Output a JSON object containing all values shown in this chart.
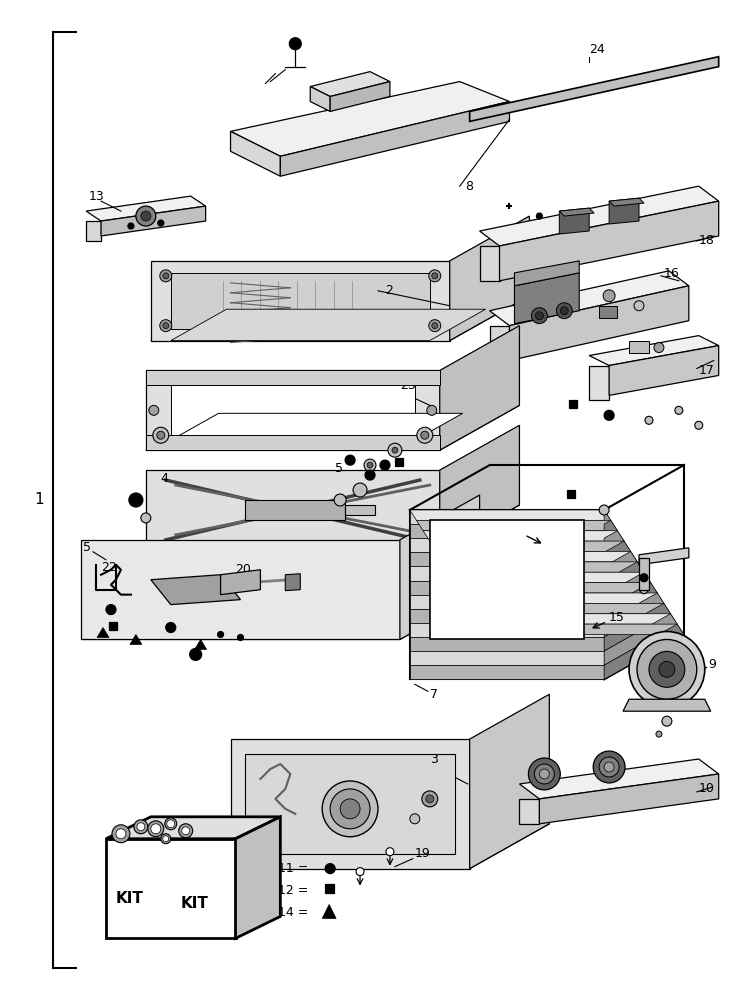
{
  "bg_color": "#ffffff",
  "line_color": "#000000",
  "fig_width": 7.44,
  "fig_height": 10.0,
  "dpi": 100
}
